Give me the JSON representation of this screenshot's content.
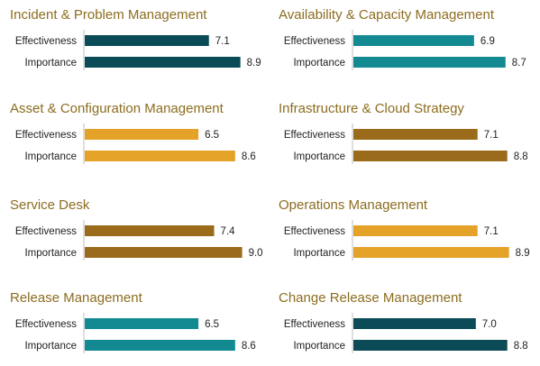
{
  "charts": [
    {
      "title": "Incident & Problem Management",
      "color": "#0b4b57",
      "chart_data": {
        "type": "bar",
        "orientation": "horizontal",
        "categories": [
          "Effectiveness",
          "Importance"
        ],
        "values": [
          7.1,
          8.9
        ],
        "value_labels": [
          "7.1",
          "8.9"
        ],
        "xlim": [
          0,
          10
        ]
      }
    },
    {
      "title": "Availability & Capacity Management",
      "color": "#138a92",
      "chart_data": {
        "type": "bar",
        "orientation": "horizontal",
        "categories": [
          "Effectiveness",
          "Importance"
        ],
        "values": [
          6.9,
          8.7
        ],
        "value_labels": [
          "6.9",
          "8.7"
        ],
        "xlim": [
          0,
          10
        ]
      }
    },
    {
      "title": "Asset & Configuration Management",
      "color": "#e5a229",
      "chart_data": {
        "type": "bar",
        "orientation": "horizontal",
        "categories": [
          "Effectiveness",
          "Importance"
        ],
        "values": [
          6.5,
          8.6
        ],
        "value_labels": [
          "6.5",
          "8.6"
        ],
        "xlim": [
          0,
          10
        ]
      }
    },
    {
      "title": "Infrastructure & Cloud Strategy",
      "color": "#9a6b1b",
      "chart_data": {
        "type": "bar",
        "orientation": "horizontal",
        "categories": [
          "Effectiveness",
          "Importance"
        ],
        "values": [
          7.1,
          8.8
        ],
        "value_labels": [
          "7.1",
          "8.8"
        ],
        "xlim": [
          0,
          10
        ]
      }
    },
    {
      "title": "Service Desk",
      "color": "#9a6b1b",
      "chart_data": {
        "type": "bar",
        "orientation": "horizontal",
        "categories": [
          "Effectiveness",
          "Importance"
        ],
        "values": [
          7.4,
          9.0
        ],
        "value_labels": [
          "7.4",
          "9.0"
        ],
        "xlim": [
          0,
          10
        ]
      }
    },
    {
      "title": "Operations Management",
      "color": "#e5a229",
      "chart_data": {
        "type": "bar",
        "orientation": "horizontal",
        "categories": [
          "Effectiveness",
          "Importance"
        ],
        "values": [
          7.1,
          8.9
        ],
        "value_labels": [
          "7.1",
          "8.9"
        ],
        "xlim": [
          0,
          10
        ]
      }
    },
    {
      "title": "Release Management",
      "color": "#138a92",
      "chart_data": {
        "type": "bar",
        "orientation": "horizontal",
        "categories": [
          "Effectiveness",
          "Importance"
        ],
        "values": [
          6.5,
          8.6
        ],
        "value_labels": [
          "6.5",
          "8.6"
        ],
        "xlim": [
          0,
          10
        ]
      }
    },
    {
      "title": "Change Release Management",
      "color": "#0b4b57",
      "chart_data": {
        "type": "bar",
        "orientation": "horizontal",
        "categories": [
          "Effectiveness",
          "Importance"
        ],
        "values": [
          7.0,
          8.8
        ],
        "value_labels": [
          "7.0",
          "8.8"
        ],
        "xlim": [
          0,
          10
        ]
      }
    }
  ],
  "chart_data": [
    {
      "type": "bar",
      "title": "Incident & Problem Management",
      "categories": [
        "Effectiveness",
        "Importance"
      ],
      "values": [
        7.1,
        8.9
      ]
    },
    {
      "type": "bar",
      "title": "Availability & Capacity Management",
      "categories": [
        "Effectiveness",
        "Importance"
      ],
      "values": [
        6.9,
        8.7
      ]
    },
    {
      "type": "bar",
      "title": "Asset & Configuration Management",
      "categories": [
        "Effectiveness",
        "Importance"
      ],
      "values": [
        6.5,
        8.6
      ]
    },
    {
      "type": "bar",
      "title": "Infrastructure & Cloud Strategy",
      "categories": [
        "Effectiveness",
        "Importance"
      ],
      "values": [
        7.1,
        8.8
      ]
    },
    {
      "type": "bar",
      "title": "Service Desk",
      "categories": [
        "Effectiveness",
        "Importance"
      ],
      "values": [
        7.4,
        9.0
      ]
    },
    {
      "type": "bar",
      "title": "Operations Management",
      "categories": [
        "Effectiveness",
        "Importance"
      ],
      "values": [
        7.1,
        8.9
      ]
    },
    {
      "type": "bar",
      "title": "Release Management",
      "categories": [
        "Effectiveness",
        "Importance"
      ],
      "values": [
        6.5,
        8.6
      ]
    },
    {
      "type": "bar",
      "title": "Change Release Management",
      "categories": [
        "Effectiveness",
        "Importance"
      ],
      "values": [
        7.0,
        8.8
      ]
    }
  ]
}
